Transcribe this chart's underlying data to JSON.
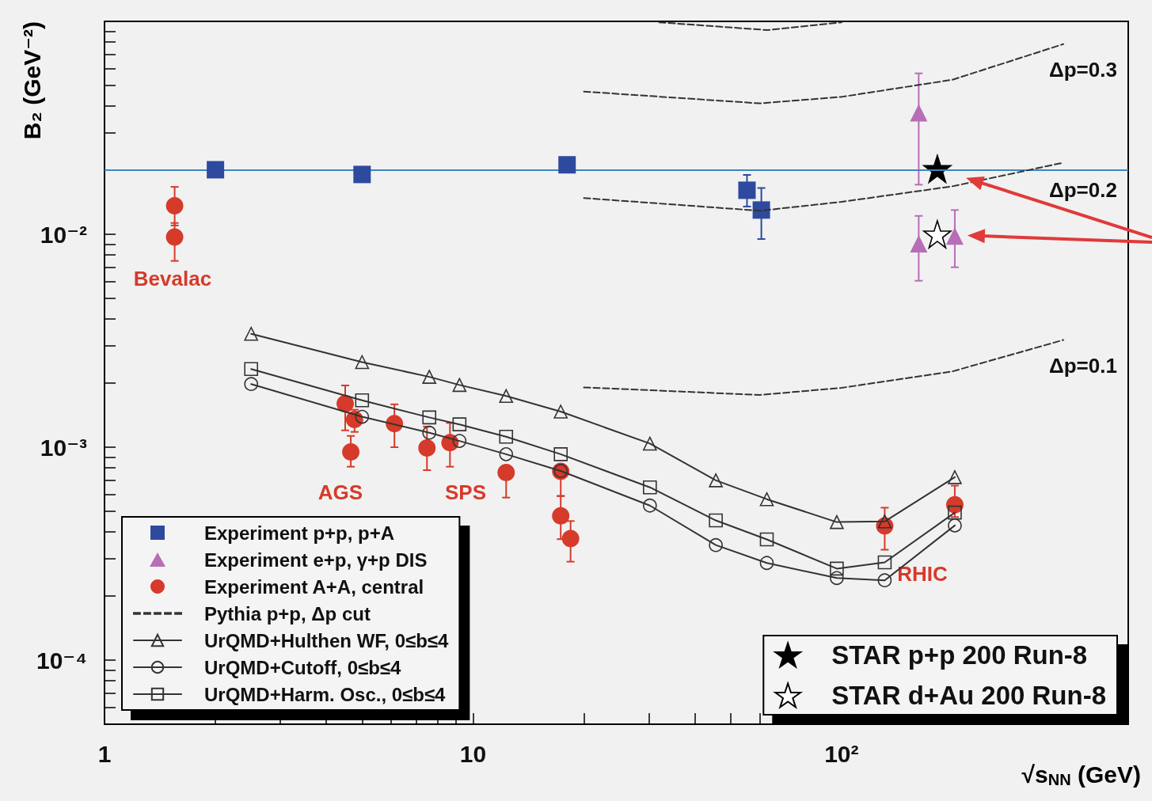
{
  "chart_data": {
    "type": "scatter",
    "xlabel": "√s$_{NN}$ (GeV)",
    "ylabel": "B₂ (GeV⁻²)",
    "log": "xy",
    "legend": "bottom left",
    "xlim": [
      1,
      600
    ],
    "ylim": [
      5e-05,
      0.1
    ],
    "xticks": [
      1,
      {
        "value": 2,
        "label": null
      },
      {
        "value": 3,
        "label": null
      },
      {
        "value": 4,
        "label": null
      },
      {
        "value": 5,
        "label": null
      },
      {
        "value": 6,
        "label": null
      },
      {
        "value": 7,
        "label": null
      },
      {
        "value": 8,
        "label": null
      },
      {
        "value": 9,
        "label": null
      },
      10,
      {
        "value": 20,
        "label": null
      },
      {
        "value": 30,
        "label": null
      },
      {
        "value": 40,
        "label": null
      },
      {
        "value": 50,
        "label": null
      },
      {
        "value": 60,
        "label": null
      },
      {
        "value": 70,
        "label": null
      },
      {
        "value": 80,
        "label": null
      },
      {
        "value": 90,
        "label": null
      },
      {
        "value": 100,
        "label": "10²"
      },
      {
        "value": 200,
        "label": null
      },
      {
        "value": 300,
        "label": null
      },
      {
        "value": 400,
        "label": null
      },
      {
        "value": 500,
        "label": null
      },
      {
        "value": 600,
        "label": null
      }
    ],
    "yticks": [
      {
        "value": 5e-05,
        "label": null
      },
      {
        "value": 6e-05,
        "label": null
      },
      {
        "value": 7e-05,
        "label": null
      },
      {
        "value": 8e-05,
        "label": null
      },
      {
        "value": 9e-05,
        "label": null
      },
      {
        "value": 0.0001,
        "label": "10⁻⁴"
      },
      {
        "value": 0.0002,
        "label": null
      },
      {
        "value": 0.0003,
        "label": null
      },
      {
        "value": 0.0004,
        "label": null
      },
      {
        "value": 0.0005,
        "label": null
      },
      {
        "value": 0.0006,
        "label": null
      },
      {
        "value": 0.0007,
        "label": null
      },
      {
        "value": 0.0008,
        "label": null
      },
      {
        "value": 0.0009,
        "label": null
      },
      {
        "value": 0.001,
        "label": "10⁻³"
      },
      {
        "value": 0.002,
        "label": null
      },
      {
        "value": 0.003,
        "label": null
      },
      {
        "value": 0.004,
        "label": null
      },
      {
        "value": 0.005,
        "label": null
      },
      {
        "value": 0.006,
        "label": null
      },
      {
        "value": 0.007,
        "label": null
      },
      {
        "value": 0.008,
        "label": null
      },
      {
        "value": 0.009,
        "label": null
      },
      {
        "value": 0.01,
        "label": "10⁻²"
      },
      {
        "value": 0.02,
        "label": null
      },
      {
        "value": 0.03,
        "label": null
      },
      {
        "value": 0.04,
        "label": null
      },
      {
        "value": 0.05,
        "label": null
      },
      {
        "value": 0.06,
        "label": null
      },
      {
        "value": 0.07,
        "label": null
      },
      {
        "value": 0.08,
        "label": null
      },
      {
        "value": 0.09,
        "label": null
      },
      {
        "value": 0.1,
        "label": null
      }
    ],
    "ref_lines": [
      {
        "axis": "y",
        "value": 0.02,
        "color": "#3d85c6"
      }
    ],
    "annotations": [
      "Bevalac",
      "AGS",
      "SPS",
      "RHIC",
      "Δp=0.3",
      "Δp=0.2",
      "Δp=0.1"
    ],
    "series": [
      {
        "name": "Experiment p+p, p+A",
        "marker": "square",
        "color": "#2e4a9e",
        "x": [
          2.0,
          5.0,
          18.0,
          55.4,
          60.6
        ],
        "values": [
          0.0201,
          0.0191,
          0.0212,
          0.0161,
          0.013
        ],
        "errors": [
          null,
          null,
          null,
          [
            0.0135,
            0.019
          ],
          [
            0.0095,
            0.0165
          ]
        ]
      },
      {
        "name": "Experiment e+p, γ+p DIS",
        "marker": "triangle",
        "color": "#b86db8",
        "x": [
          162,
          162,
          203
        ],
        "values": [
          0.0372,
          0.00903,
          0.0098
        ],
        "errors": [
          [
            0.0171,
            0.057
          ],
          [
            0.00605,
            0.0122
          ],
          [
            0.007,
            0.013
          ]
        ]
      },
      {
        "name": "Experiment A+A, central",
        "marker": "circle",
        "color": "#d63a2a",
        "x": [
          1.55,
          1.55,
          4.5,
          4.77,
          4.66,
          6.12,
          7.5,
          8.66,
          12.3,
          17.3,
          17.3,
          18.4,
          131,
          203
        ],
        "values": [
          0.0136,
          0.0097,
          0.0016,
          0.00135,
          0.00095,
          0.00129,
          0.000992,
          0.00105,
          0.00076,
          0.00077,
          0.000476,
          0.000372,
          0.000427,
          0.000537
        ],
        "errors": [
          [
            0.011,
            0.0167
          ],
          [
            0.0075,
            0.0113
          ],
          [
            0.0012,
            0.00195
          ],
          [
            0.00118,
            0.0015
          ],
          [
            0.00081,
            0.00113
          ],
          [
            0.001,
            0.00159
          ],
          [
            0.00078,
            0.00125
          ],
          [
            0.00081,
            0.0013
          ],
          [
            0.00058,
            0.00076
          ],
          [
            0.00059,
            0.00077
          ],
          [
            0.00037,
            0.00059
          ],
          [
            0.00029,
            0.00045
          ],
          [
            0.00033,
            0.00052
          ],
          [
            0.00047,
            0.00066
          ]
        ]
      },
      {
        "name": "Pythia p+p, Δp cut",
        "type": "line",
        "marker": "none",
        "line_style": "dashed",
        "color": "#333333",
        "x": [
          20,
          60,
          100,
          200,
          400
        ],
        "values": [
          0.0468,
          0.0412,
          0.0442,
          0.0532,
          0.0782
        ]
      },
      {
        "type": "line",
        "marker": "none",
        "line_style": "dashed",
        "color": "#333333",
        "x": [
          20,
          60,
          100,
          200,
          400
        ],
        "values": [
          0.0148,
          0.0129,
          0.0142,
          0.0168,
          0.0217
        ]
      },
      {
        "type": "line",
        "marker": "none",
        "line_style": "dashed",
        "color": "#333333",
        "x": [
          20,
          60,
          100,
          200,
          400
        ],
        "values": [
          0.00191,
          0.00176,
          0.0019,
          0.00227,
          0.00319
        ]
      },
      {
        "type": "line",
        "marker": "none",
        "line_style": "dashed",
        "color": "#333333",
        "x": [
          32,
          63,
          100
        ],
        "values": [
          0.099,
          0.091,
          0.099
        ]
      },
      {
        "name": "UrQMD+Hulthen WF, 0≤b≤4",
        "type": "line",
        "marker": "triangle",
        "line_style": "solid",
        "color": "#333333",
        "x": [
          2.5,
          5.0,
          7.61,
          9.19,
          12.3,
          17.3,
          30.2,
          45.6,
          62.7,
          97.1,
          131,
          203
        ],
        "values": [
          0.00341,
          0.00251,
          0.00214,
          0.00196,
          0.00174,
          0.00147,
          0.00104,
          0.000699,
          0.00057,
          0.000445,
          0.000448,
          0.000723
        ]
      },
      {
        "name": "UrQMD+Cutoff, 0≤b≤4",
        "type": "line",
        "marker": "circle",
        "line_style": "solid",
        "color": "#333333",
        "x": [
          2.5,
          5.0,
          7.61,
          9.19,
          12.3,
          17.3,
          30.2,
          45.6,
          62.7,
          97.1,
          131,
          203
        ],
        "values": [
          0.00198,
          0.00139,
          0.00117,
          0.00107,
          0.000927,
          0.000774,
          0.000532,
          0.000347,
          0.000286,
          0.000243,
          0.000237,
          0.000429
        ]
      },
      {
        "name": "UrQMD+Harm. Osc., 0≤b≤4",
        "type": "line",
        "marker": "square",
        "line_style": "solid",
        "color": "#333333",
        "x": [
          2.5,
          5.0,
          7.61,
          9.19,
          12.3,
          17.3,
          30.2,
          45.6,
          62.7,
          97.1,
          131,
          203
        ],
        "values": [
          0.00233,
          0.00166,
          0.00138,
          0.00128,
          0.00112,
          0.000927,
          0.000648,
          0.000453,
          0.000369,
          0.000269,
          0.000288,
          0.000493
        ]
      },
      {
        "name": "STAR p+p 200 Run-8",
        "marker": "star",
        "color": "#000000",
        "x": [
          182
        ],
        "values": [
          0.0203
        ]
      },
      {
        "name": "STAR d+Au 200 Run-8",
        "marker": "star",
        "color": "#ffffff",
        "x": [
          182
        ],
        "values": [
          0.01
        ]
      }
    ]
  }
}
